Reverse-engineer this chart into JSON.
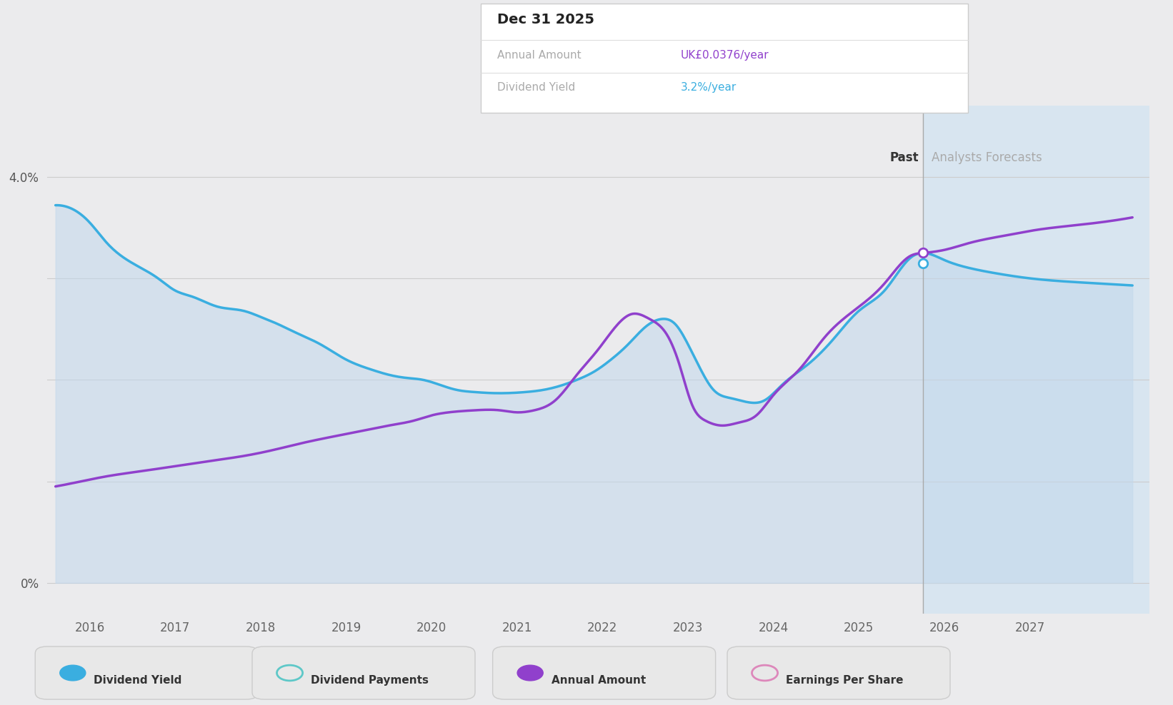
{
  "bg_color": "#ebebed",
  "plot_bg_color": "#ebebed",
  "chart_area_color": "#e8edf2",
  "forecast_area_color": "#d8e5f0",
  "fill_color": "#c2d8ec",
  "fill_alpha": 0.55,
  "div_yield_color": "#3aaee0",
  "annual_amount_color": "#9040cc",
  "grid_color": "#cccccc",
  "xlim": [
    2015.5,
    2028.4
  ],
  "ylim": [
    -0.3,
    4.7
  ],
  "ytick_positions": [
    0,
    1,
    2,
    3,
    4
  ],
  "ytick_labels_show": [
    true,
    false,
    false,
    false,
    true
  ],
  "ytick_labels": [
    "0%",
    "",
    "",
    "",
    "4.0%"
  ],
  "xtick_positions": [
    2016,
    2017,
    2018,
    2019,
    2020,
    2021,
    2022,
    2023,
    2024,
    2025,
    2026,
    2027
  ],
  "xtick_labels": [
    "2016",
    "2017",
    "2018",
    "2019",
    "2020",
    "2021",
    "2022",
    "2023",
    "2024",
    "2025",
    "2026",
    "2027"
  ],
  "forecast_start": 2025.75,
  "past_label": "Past",
  "forecast_label": "Analysts Forecasts",
  "div_yield_color_hex": "#3aaee0",
  "annual_amount_color_hex": "#9040cc",
  "tooltip_date": "Dec 31 2025",
  "tooltip_annual_label": "Annual Amount",
  "tooltip_annual_value": "UK£0.0376/year",
  "tooltip_annual_color": "#9040cc",
  "tooltip_yield_label": "Dividend Yield",
  "tooltip_yield_value": "3.2%/year",
  "tooltip_yield_color": "#3aaee0",
  "marker_x": 2025.75,
  "marker_y_purple": 3.25,
  "marker_y_blue": 3.15,
  "legend_items": [
    "Dividend Yield",
    "Dividend Payments",
    "Annual Amount",
    "Earnings Per Share"
  ],
  "legend_colors": [
    "#3aaee0",
    "#5ec8c8",
    "#9040cc",
    "#dd88bb"
  ],
  "legend_filled": [
    true,
    false,
    true,
    false
  ],
  "dividend_yield_x": [
    2015.6,
    2015.75,
    2016.0,
    2016.2,
    2016.5,
    2016.8,
    2017.0,
    2017.2,
    2017.5,
    2017.8,
    2018.0,
    2018.2,
    2018.4,
    2018.7,
    2019.0,
    2019.3,
    2019.5,
    2019.7,
    2019.9,
    2020.1,
    2020.3,
    2020.5,
    2020.7,
    2020.9,
    2021.1,
    2021.3,
    2021.5,
    2021.7,
    2021.9,
    2022.1,
    2022.3,
    2022.5,
    2022.7,
    2022.85,
    2023.0,
    2023.15,
    2023.3,
    2023.5,
    2023.7,
    2023.9,
    2024.1,
    2024.4,
    2024.7,
    2025.0,
    2025.3,
    2025.6,
    2025.75,
    2026.0,
    2026.3,
    2026.6,
    2027.0,
    2027.4,
    2027.8,
    2028.2
  ],
  "dividend_yield_y": [
    3.72,
    3.7,
    3.55,
    3.35,
    3.15,
    3.0,
    2.88,
    2.82,
    2.72,
    2.68,
    2.62,
    2.55,
    2.47,
    2.35,
    2.2,
    2.1,
    2.05,
    2.02,
    2.0,
    1.95,
    1.9,
    1.88,
    1.87,
    1.87,
    1.88,
    1.9,
    1.94,
    2.0,
    2.08,
    2.2,
    2.35,
    2.52,
    2.6,
    2.55,
    2.35,
    2.1,
    1.9,
    1.82,
    1.78,
    1.8,
    1.95,
    2.15,
    2.4,
    2.68,
    2.88,
    3.2,
    3.25,
    3.18,
    3.1,
    3.05,
    3.0,
    2.97,
    2.95,
    2.93
  ],
  "annual_amount_x": [
    2015.6,
    2015.9,
    2016.2,
    2016.6,
    2017.0,
    2017.4,
    2017.8,
    2018.1,
    2018.5,
    2018.9,
    2019.2,
    2019.5,
    2019.8,
    2020.0,
    2020.2,
    2020.5,
    2020.8,
    2021.0,
    2021.2,
    2021.45,
    2021.7,
    2021.95,
    2022.15,
    2022.35,
    2022.55,
    2022.75,
    2022.9,
    2023.05,
    2023.2,
    2023.4,
    2023.6,
    2023.8,
    2024.0,
    2024.3,
    2024.6,
    2025.0,
    2025.3,
    2025.6,
    2025.75,
    2026.0,
    2026.3,
    2026.7,
    2027.1,
    2027.5,
    2027.9,
    2028.2
  ],
  "annual_amount_y": [
    0.95,
    1.0,
    1.05,
    1.1,
    1.15,
    1.2,
    1.25,
    1.3,
    1.38,
    1.45,
    1.5,
    1.55,
    1.6,
    1.65,
    1.68,
    1.7,
    1.7,
    1.68,
    1.7,
    1.8,
    2.05,
    2.3,
    2.52,
    2.65,
    2.6,
    2.45,
    2.15,
    1.75,
    1.6,
    1.55,
    1.58,
    1.65,
    1.85,
    2.1,
    2.42,
    2.72,
    2.95,
    3.22,
    3.25,
    3.28,
    3.35,
    3.42,
    3.48,
    3.52,
    3.56,
    3.6
  ]
}
